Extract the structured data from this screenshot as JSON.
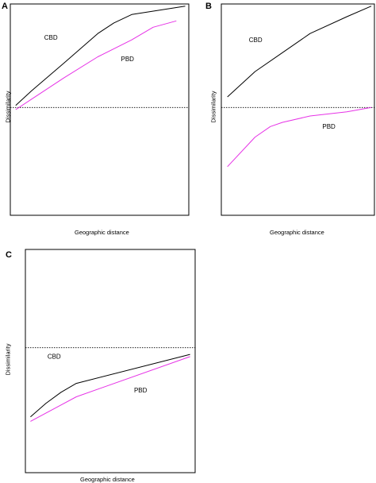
{
  "colors": {
    "CBD": "#000000",
    "PBD": "#e632e6",
    "frame": "#000000"
  },
  "chart_data": [
    {
      "panel": "A",
      "type": "line",
      "xlabel": "Geographic distance",
      "ylabel": "Dissimilarity",
      "xlim": [
        0,
        1
      ],
      "ylim": [
        0,
        1
      ],
      "reference_line": {
        "y": 0.51,
        "style": "dotted"
      },
      "series": [
        {
          "name": "CBD",
          "color": "#000000",
          "x": [
            0.03,
            0.12,
            0.3,
            0.49,
            0.58,
            0.68,
            0.98
          ],
          "y": [
            0.52,
            0.59,
            0.72,
            0.86,
            0.91,
            0.95,
            0.99
          ]
        },
        {
          "name": "PBD",
          "color": "#e632e6",
          "x": [
            0.03,
            0.12,
            0.3,
            0.49,
            0.68,
            0.8,
            0.93
          ],
          "y": [
            0.5,
            0.55,
            0.65,
            0.75,
            0.83,
            0.89,
            0.92
          ]
        }
      ],
      "annotations": [
        {
          "text": "CBD",
          "x": 0.19,
          "y": 0.83
        },
        {
          "text": "PBD",
          "x": 0.62,
          "y": 0.73
        }
      ]
    },
    {
      "panel": "B",
      "type": "line",
      "xlabel": "Geographic distance",
      "ylabel": "Dissimilarity",
      "xlim": [
        0,
        1
      ],
      "ylim": [
        0,
        1
      ],
      "reference_line": {
        "y": 0.51,
        "style": "dotted"
      },
      "series": [
        {
          "name": "CBD",
          "color": "#000000",
          "x": [
            0.04,
            0.22,
            0.4,
            0.58,
            0.82,
            0.98
          ],
          "y": [
            0.56,
            0.68,
            0.77,
            0.86,
            0.94,
            0.99
          ]
        },
        {
          "name": "PBD",
          "color": "#e632e6",
          "x": [
            0.04,
            0.22,
            0.32,
            0.4,
            0.58,
            0.82,
            0.98
          ],
          "y": [
            0.23,
            0.37,
            0.42,
            0.44,
            0.47,
            0.49,
            0.51
          ]
        }
      ],
      "annotations": [
        {
          "text": "CBD",
          "x": 0.18,
          "y": 0.82
        },
        {
          "text": "PBD",
          "x": 0.66,
          "y": 0.41
        }
      ]
    },
    {
      "panel": "C",
      "type": "line",
      "xlabel": "Geographic distance",
      "ylabel": "Dissimilarity",
      "xlim": [
        0,
        1
      ],
      "ylim": [
        0,
        1
      ],
      "reference_line": {
        "y": 0.56,
        "style": "dotted"
      },
      "series": [
        {
          "name": "CBD",
          "color": "#000000",
          "x": [
            0.03,
            0.12,
            0.21,
            0.3,
            0.97
          ],
          "y": [
            0.25,
            0.31,
            0.36,
            0.4,
            0.53
          ]
        },
        {
          "name": "PBD",
          "color": "#e632e6",
          "x": [
            0.03,
            0.3,
            0.97
          ],
          "y": [
            0.23,
            0.34,
            0.52
          ]
        }
      ],
      "annotations": [
        {
          "text": "CBD",
          "x": 0.13,
          "y": 0.51
        },
        {
          "text": "PBD",
          "x": 0.64,
          "y": 0.36
        }
      ]
    }
  ]
}
